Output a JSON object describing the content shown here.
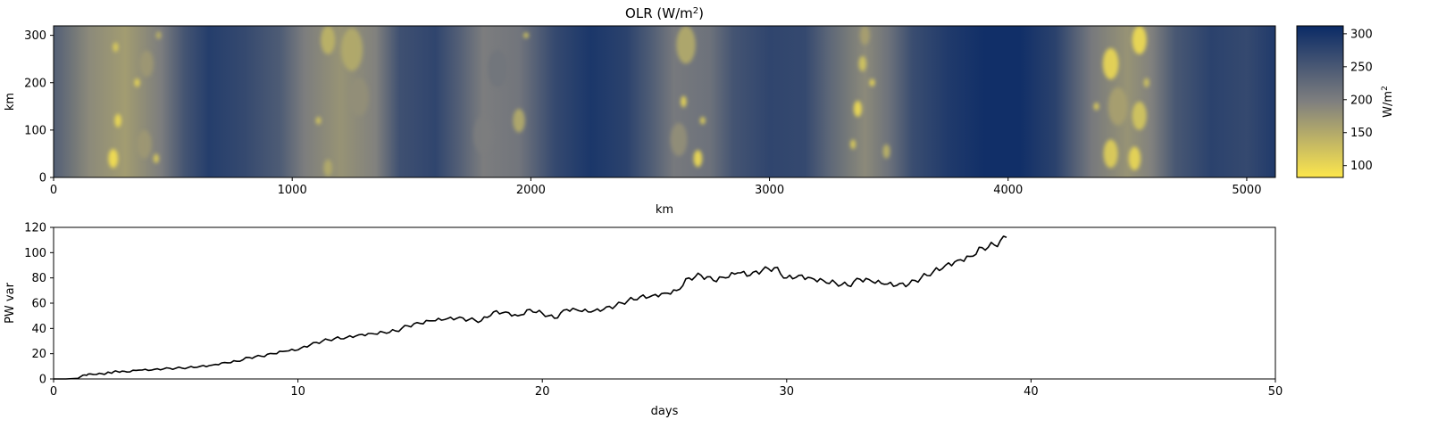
{
  "chart_data": [
    {
      "type": "heatmap",
      "title_main": "OLR (W/m",
      "title_sup": "2",
      "title_end": ")",
      "xlabel": "km",
      "ylabel": "km",
      "xlim": [
        0,
        5120
      ],
      "ylim": [
        0,
        320
      ],
      "xticks": [
        "0",
        "1000",
        "2000",
        "3000",
        "4000",
        "5000"
      ],
      "yticks": [
        "0",
        "100",
        "200",
        "300"
      ],
      "colorbar": {
        "label_main": "W/m",
        "label_sup": "2",
        "range": [
          82,
          312
        ],
        "ticks": [
          "100",
          "150",
          "200",
          "250",
          "300"
        ],
        "low_color": "#fde74c",
        "mid_color": "#7f7f7f",
        "high_color": "#0a2a66"
      },
      "convective_clusters": [
        {
          "x": 250,
          "y": 40,
          "r": 20,
          "olr": 90
        },
        {
          "x": 270,
          "y": 120,
          "r": 14,
          "olr": 95
        },
        {
          "x": 260,
          "y": 275,
          "r": 10,
          "olr": 110
        },
        {
          "x": 350,
          "y": 200,
          "r": 9,
          "olr": 100
        },
        {
          "x": 430,
          "y": 40,
          "r": 10,
          "olr": 110
        },
        {
          "x": 380,
          "y": 70,
          "r": 30,
          "olr": 170
        },
        {
          "x": 390,
          "y": 240,
          "r": 28,
          "olr": 170
        },
        {
          "x": 440,
          "y": 300,
          "r": 8,
          "olr": 140
        },
        {
          "x": 1150,
          "y": 290,
          "r": 30,
          "olr": 140
        },
        {
          "x": 1250,
          "y": 270,
          "r": 45,
          "olr": 150
        },
        {
          "x": 1280,
          "y": 170,
          "r": 40,
          "olr": 180
        },
        {
          "x": 1150,
          "y": 20,
          "r": 18,
          "olr": 150
        },
        {
          "x": 1110,
          "y": 120,
          "r": 8,
          "olr": 120
        },
        {
          "x": 1950,
          "y": 120,
          "r": 25,
          "olr": 150
        },
        {
          "x": 1800,
          "y": 90,
          "r": 40,
          "olr": 200
        },
        {
          "x": 1860,
          "y": 230,
          "r": 40,
          "olr": 210
        },
        {
          "x": 1980,
          "y": 300,
          "r": 6,
          "olr": 120
        },
        {
          "x": 2700,
          "y": 40,
          "r": 18,
          "olr": 95
        },
        {
          "x": 2640,
          "y": 160,
          "r": 12,
          "olr": 100
        },
        {
          "x": 2720,
          "y": 120,
          "r": 8,
          "olr": 110
        },
        {
          "x": 2650,
          "y": 280,
          "r": 40,
          "olr": 150
        },
        {
          "x": 2620,
          "y": 80,
          "r": 35,
          "olr": 180
        },
        {
          "x": 3370,
          "y": 145,
          "r": 17,
          "olr": 95
        },
        {
          "x": 3390,
          "y": 240,
          "r": 16,
          "olr": 120
        },
        {
          "x": 3350,
          "y": 70,
          "r": 10,
          "olr": 110
        },
        {
          "x": 3430,
          "y": 200,
          "r": 8,
          "olr": 100
        },
        {
          "x": 3490,
          "y": 55,
          "r": 15,
          "olr": 140
        },
        {
          "x": 3400,
          "y": 300,
          "r": 20,
          "olr": 160
        },
        {
          "x": 4430,
          "y": 240,
          "r": 33,
          "olr": 100
        },
        {
          "x": 4550,
          "y": 290,
          "r": 30,
          "olr": 95
        },
        {
          "x": 4550,
          "y": 130,
          "r": 30,
          "olr": 120
        },
        {
          "x": 4430,
          "y": 50,
          "r": 30,
          "olr": 110
        },
        {
          "x": 4530,
          "y": 40,
          "r": 25,
          "olr": 100
        },
        {
          "x": 4580,
          "y": 200,
          "r": 10,
          "olr": 120
        },
        {
          "x": 4370,
          "y": 150,
          "r": 8,
          "olr": 110
        },
        {
          "x": 4460,
          "y": 150,
          "r": 40,
          "olr": 160
        }
      ],
      "background_columns": [
        {
          "x": 0,
          "olr": 240
        },
        {
          "x": 150,
          "olr": 185
        },
        {
          "x": 300,
          "olr": 165
        },
        {
          "x": 450,
          "olr": 200
        },
        {
          "x": 550,
          "olr": 255
        },
        {
          "x": 650,
          "olr": 285
        },
        {
          "x": 800,
          "olr": 270
        },
        {
          "x": 950,
          "olr": 245
        },
        {
          "x": 1050,
          "olr": 200
        },
        {
          "x": 1200,
          "olr": 175
        },
        {
          "x": 1350,
          "olr": 195
        },
        {
          "x": 1450,
          "olr": 260
        },
        {
          "x": 1600,
          "olr": 275
        },
        {
          "x": 1700,
          "olr": 240
        },
        {
          "x": 1800,
          "olr": 200
        },
        {
          "x": 1950,
          "olr": 210
        },
        {
          "x": 2100,
          "olr": 270
        },
        {
          "x": 2250,
          "olr": 295
        },
        {
          "x": 2400,
          "olr": 280
        },
        {
          "x": 2500,
          "olr": 245
        },
        {
          "x": 2600,
          "olr": 205
        },
        {
          "x": 2750,
          "olr": 215
        },
        {
          "x": 2850,
          "olr": 255
        },
        {
          "x": 3000,
          "olr": 275
        },
        {
          "x": 3150,
          "olr": 270
        },
        {
          "x": 3250,
          "olr": 230
        },
        {
          "x": 3400,
          "olr": 185
        },
        {
          "x": 3500,
          "olr": 215
        },
        {
          "x": 3600,
          "olr": 265
        },
        {
          "x": 3750,
          "olr": 290
        },
        {
          "x": 3900,
          "olr": 305
        },
        {
          "x": 4050,
          "olr": 305
        },
        {
          "x": 4200,
          "olr": 280
        },
        {
          "x": 4350,
          "olr": 205
        },
        {
          "x": 4500,
          "olr": 175
        },
        {
          "x": 4600,
          "olr": 195
        },
        {
          "x": 4700,
          "olr": 250
        },
        {
          "x": 4850,
          "olr": 280
        },
        {
          "x": 5000,
          "olr": 270
        },
        {
          "x": 5120,
          "olr": 290
        }
      ]
    },
    {
      "type": "line",
      "xlabel": "days",
      "ylabel": "PW var",
      "xlim": [
        0,
        50
      ],
      "ylim": [
        0,
        120
      ],
      "xticks": [
        "0",
        "10",
        "20",
        "30",
        "40",
        "50"
      ],
      "yticks": [
        "0",
        "20",
        "40",
        "60",
        "80",
        "100",
        "120"
      ],
      "line_color": "#000000",
      "x": [
        0,
        0.5,
        1,
        1.2,
        1.5,
        2,
        2.3,
        2.6,
        3,
        3.5,
        4,
        4.5,
        5,
        5.5,
        6,
        6.5,
        7,
        7.5,
        8,
        8.5,
        9,
        9.5,
        10,
        10.5,
        11,
        11.5,
        12,
        12.5,
        13,
        13.5,
        14,
        14.5,
        15,
        15.5,
        16,
        16.5,
        17,
        17.5,
        18,
        18.5,
        19,
        19.5,
        20,
        20.5,
        21,
        21.5,
        22,
        22.5,
        23,
        23.5,
        24,
        24.5,
        25,
        25.5,
        26,
        26.5,
        27,
        27.5,
        28,
        28.5,
        29,
        29.5,
        30,
        30.5,
        31,
        31.5,
        32,
        32.5,
        33,
        33.5,
        34,
        34.5,
        35,
        35.5,
        36,
        36.5,
        37,
        37.5,
        38,
        38.5,
        39
      ],
      "y": [
        0,
        0,
        0.5,
        3,
        4,
        4,
        5,
        6,
        5.5,
        7,
        7,
        8,
        8.5,
        9,
        10,
        11,
        13,
        14,
        17,
        18,
        20,
        22,
        23,
        27,
        30,
        32,
        33,
        35,
        36,
        37,
        38,
        42,
        44,
        46,
        47,
        48,
        47,
        46,
        53,
        53,
        50,
        55,
        52,
        48,
        55,
        54,
        53,
        55,
        58,
        62,
        65,
        66,
        68,
        70,
        80,
        82,
        78,
        80,
        84,
        82,
        86,
        88,
        80,
        82,
        80,
        78,
        76,
        74,
        79,
        77,
        75,
        74,
        75,
        80,
        85,
        90,
        94,
        97,
        104,
        106,
        112
      ]
    }
  ]
}
